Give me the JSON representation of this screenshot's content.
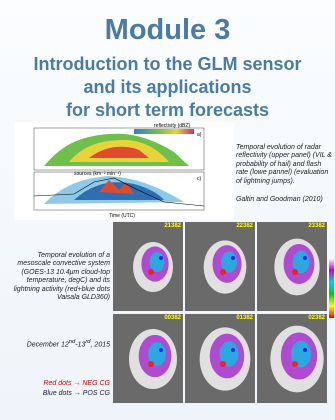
{
  "slide": {
    "title": "Module 3",
    "subtitle_lines": [
      "Introduction to the GLM sensor",
      "and its applications",
      "for short term forecasts"
    ],
    "figure": {
      "upper_label": "reflectivity (dBZ)",
      "upper_panel": "a)",
      "lower_label": "sources (km⁻² min⁻¹)",
      "lower_panel": "c)",
      "x_label": "Time (UTC)"
    },
    "right_caption": "Temporal evolution of radar reflectivity (upper panel) (VIL & probability of hail) and flash rate (lowe pannel) (evaluation of lightning jumps).",
    "right_citation": "Galtin and Goodman (2010)",
    "left_caption": "Temporal evolution of a mesoscale convective system (GOES-13 10.4μm cloud-top temperature, degC) and its lightning activity (red+blue dots Vaisala GLD360)",
    "date_parts": [
      "December 12",
      "nd",
      "-13",
      "rd",
      ", 2015"
    ],
    "legend_lines": [
      "Red dots → NEG CG",
      "Blue dots → POS CG"
    ],
    "panel_times": [
      "21382",
      "22382",
      "23382",
      "00382",
      "01382",
      "02382"
    ]
  }
}
